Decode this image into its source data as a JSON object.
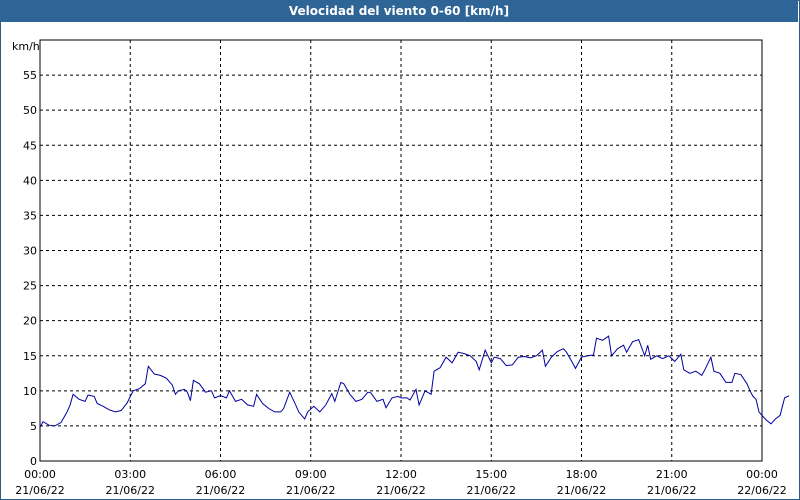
{
  "chart_data": {
    "type": "line",
    "title": "Velocidad del viento 0-60 [km/h]",
    "ylabel": "km/h",
    "xlabel": "",
    "ylim": [
      0,
      60
    ],
    "yticks": [
      0,
      5,
      10,
      15,
      20,
      25,
      30,
      35,
      40,
      45,
      50,
      55
    ],
    "xlim_hours": [
      0,
      24
    ],
    "xticks": [
      {
        "time": "00:00",
        "date": "21/06/22"
      },
      {
        "time": "03:00",
        "date": "21/06/22"
      },
      {
        "time": "06:00",
        "date": "21/06/22"
      },
      {
        "time": "09:00",
        "date": "21/06/22"
      },
      {
        "time": "12:00",
        "date": "21/06/22"
      },
      {
        "time": "15:00",
        "date": "21/06/22"
      },
      {
        "time": "18:00",
        "date": "21/06/22"
      },
      {
        "time": "21:00",
        "date": "21/06/22"
      },
      {
        "time": "00:00",
        "date": "22/06/22"
      }
    ],
    "grid": true,
    "line_color": "#0000a0",
    "series": [
      {
        "values": [
          [
            0.0,
            4.8
          ],
          [
            0.1,
            5.6
          ],
          [
            0.3,
            5.1
          ],
          [
            0.5,
            5.0
          ],
          [
            0.7,
            5.5
          ],
          [
            0.9,
            7.0
          ],
          [
            1.0,
            8.0
          ],
          [
            1.1,
            9.5
          ],
          [
            1.3,
            8.8
          ],
          [
            1.5,
            8.5
          ],
          [
            1.6,
            9.4
          ],
          [
            1.8,
            9.2
          ],
          [
            1.9,
            8.2
          ],
          [
            2.1,
            7.8
          ],
          [
            2.3,
            7.3
          ],
          [
            2.5,
            7.0
          ],
          [
            2.7,
            7.2
          ],
          [
            2.9,
            8.3
          ],
          [
            3.0,
            9.2
          ],
          [
            3.1,
            10.0
          ],
          [
            3.3,
            10.3
          ],
          [
            3.5,
            11.0
          ],
          [
            3.6,
            13.5
          ],
          [
            3.8,
            12.4
          ],
          [
            4.0,
            12.2
          ],
          [
            4.2,
            11.8
          ],
          [
            4.4,
            10.8
          ],
          [
            4.5,
            9.5
          ],
          [
            4.6,
            10.0
          ],
          [
            4.8,
            10.2
          ],
          [
            4.9,
            9.8
          ],
          [
            5.0,
            8.6
          ],
          [
            5.1,
            11.5
          ],
          [
            5.3,
            11.0
          ],
          [
            5.5,
            9.8
          ],
          [
            5.7,
            10.0
          ],
          [
            5.8,
            9.0
          ],
          [
            6.0,
            9.3
          ],
          [
            6.2,
            9.0
          ],
          [
            6.3,
            10.0
          ],
          [
            6.5,
            8.5
          ],
          [
            6.7,
            8.8
          ],
          [
            6.9,
            8.0
          ],
          [
            7.1,
            7.8
          ],
          [
            7.2,
            9.5
          ],
          [
            7.4,
            8.2
          ],
          [
            7.6,
            7.5
          ],
          [
            7.8,
            7.0
          ],
          [
            8.0,
            7.0
          ],
          [
            8.1,
            7.5
          ],
          [
            8.3,
            9.8
          ],
          [
            8.5,
            8.0
          ],
          [
            8.6,
            7.0
          ],
          [
            8.8,
            6.0
          ],
          [
            8.9,
            7.0
          ],
          [
            9.1,
            7.8
          ],
          [
            9.3,
            7.0
          ],
          [
            9.5,
            8.0
          ],
          [
            9.7,
            9.6
          ],
          [
            9.8,
            8.5
          ],
          [
            10.0,
            11.2
          ],
          [
            10.1,
            11.0
          ],
          [
            10.3,
            9.5
          ],
          [
            10.5,
            8.5
          ],
          [
            10.7,
            8.8
          ],
          [
            10.9,
            9.8
          ],
          [
            11.0,
            9.7
          ],
          [
            11.2,
            8.5
          ],
          [
            11.4,
            8.8
          ],
          [
            11.5,
            7.6
          ],
          [
            11.7,
            9.0
          ],
          [
            11.9,
            9.2
          ],
          [
            12.0,
            9.0
          ],
          [
            12.2,
            9.0
          ],
          [
            12.3,
            8.7
          ],
          [
            12.5,
            10.2
          ],
          [
            12.6,
            8.0
          ],
          [
            12.8,
            10.0
          ],
          [
            13.0,
            9.5
          ],
          [
            13.1,
            12.8
          ],
          [
            13.3,
            13.3
          ],
          [
            13.5,
            14.8
          ],
          [
            13.7,
            14.0
          ],
          [
            13.9,
            15.5
          ],
          [
            14.1,
            15.3
          ],
          [
            14.3,
            15.0
          ],
          [
            14.5,
            14.2
          ],
          [
            14.6,
            13.0
          ],
          [
            14.8,
            15.8
          ],
          [
            15.0,
            14.0
          ],
          [
            15.1,
            14.8
          ],
          [
            15.3,
            14.6
          ],
          [
            15.5,
            13.6
          ],
          [
            15.7,
            13.7
          ],
          [
            15.9,
            14.8
          ],
          [
            16.1,
            14.9
          ],
          [
            16.3,
            14.7
          ],
          [
            16.5,
            15.0
          ],
          [
            16.7,
            15.8
          ],
          [
            16.8,
            13.5
          ],
          [
            17.0,
            14.8
          ],
          [
            17.2,
            15.6
          ],
          [
            17.4,
            16.0
          ],
          [
            17.5,
            15.5
          ],
          [
            17.7,
            14.0
          ],
          [
            17.8,
            13.2
          ],
          [
            18.0,
            14.8
          ],
          [
            18.2,
            15.0
          ],
          [
            18.4,
            15.1
          ],
          [
            18.5,
            17.5
          ],
          [
            18.7,
            17.2
          ],
          [
            18.9,
            17.8
          ],
          [
            19.0,
            15.0
          ],
          [
            19.2,
            16.0
          ],
          [
            19.4,
            16.5
          ],
          [
            19.5,
            15.5
          ],
          [
            19.7,
            17.0
          ],
          [
            19.9,
            17.3
          ],
          [
            20.1,
            15.0
          ],
          [
            20.2,
            16.5
          ],
          [
            20.3,
            14.5
          ],
          [
            20.5,
            15.0
          ],
          [
            20.7,
            14.6
          ],
          [
            20.9,
            15.0
          ],
          [
            21.1,
            14.2
          ],
          [
            21.3,
            15.2
          ],
          [
            21.4,
            13.0
          ],
          [
            21.6,
            12.5
          ],
          [
            21.8,
            12.8
          ],
          [
            22.0,
            12.2
          ],
          [
            22.1,
            13.0
          ],
          [
            22.3,
            14.8
          ],
          [
            22.4,
            12.8
          ],
          [
            22.6,
            12.5
          ],
          [
            22.8,
            11.2
          ],
          [
            23.0,
            11.2
          ],
          [
            23.1,
            12.5
          ],
          [
            23.3,
            12.3
          ],
          [
            23.5,
            11.0
          ],
          [
            23.6,
            10.0
          ],
          [
            23.7,
            9.2
          ],
          [
            23.8,
            8.8
          ],
          [
            23.9,
            7.0
          ],
          [
            24.0,
            6.5
          ],
          [
            24.15,
            5.8
          ],
          [
            24.3,
            5.3
          ],
          [
            24.45,
            6.0
          ],
          [
            24.6,
            6.5
          ],
          [
            24.75,
            9.0
          ],
          [
            24.9,
            9.3
          ]
        ]
      }
    ]
  }
}
